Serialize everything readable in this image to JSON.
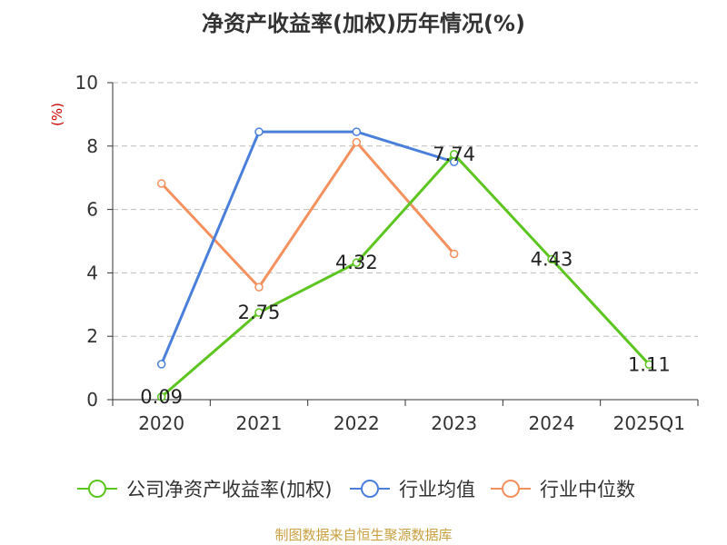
{
  "chart_data": {
    "type": "line",
    "title": "净资产收益率(加权)历年情况(%)",
    "ylabel": "(%)",
    "xlabel": "",
    "categories": [
      "2020",
      "2021",
      "2022",
      "2023",
      "2024",
      "2025Q1"
    ],
    "ylim": [
      0,
      10
    ],
    "yticks": [
      0,
      2,
      4,
      6,
      8,
      10
    ],
    "grid": true,
    "legend_position": "bottom",
    "series": [
      {
        "name": "公司净资产收益率(加权)",
        "color": "#5cc51f",
        "values": [
          0.09,
          2.75,
          4.32,
          7.74,
          4.43,
          1.11
        ],
        "labels": [
          "0.09",
          "2.75",
          "4.32",
          "7.74",
          "4.43",
          "1.11"
        ]
      },
      {
        "name": "行业均值",
        "color": "#4a7fdb",
        "values": [
          1.12,
          8.45,
          8.45,
          7.5,
          null,
          null
        ]
      },
      {
        "name": "行业中位数",
        "color": "#f5915e",
        "values": [
          6.82,
          3.55,
          8.12,
          4.6,
          null,
          null
        ]
      }
    ],
    "source": "制图数据来自恒生聚源数据库",
    "source_color": "#c8a040"
  }
}
